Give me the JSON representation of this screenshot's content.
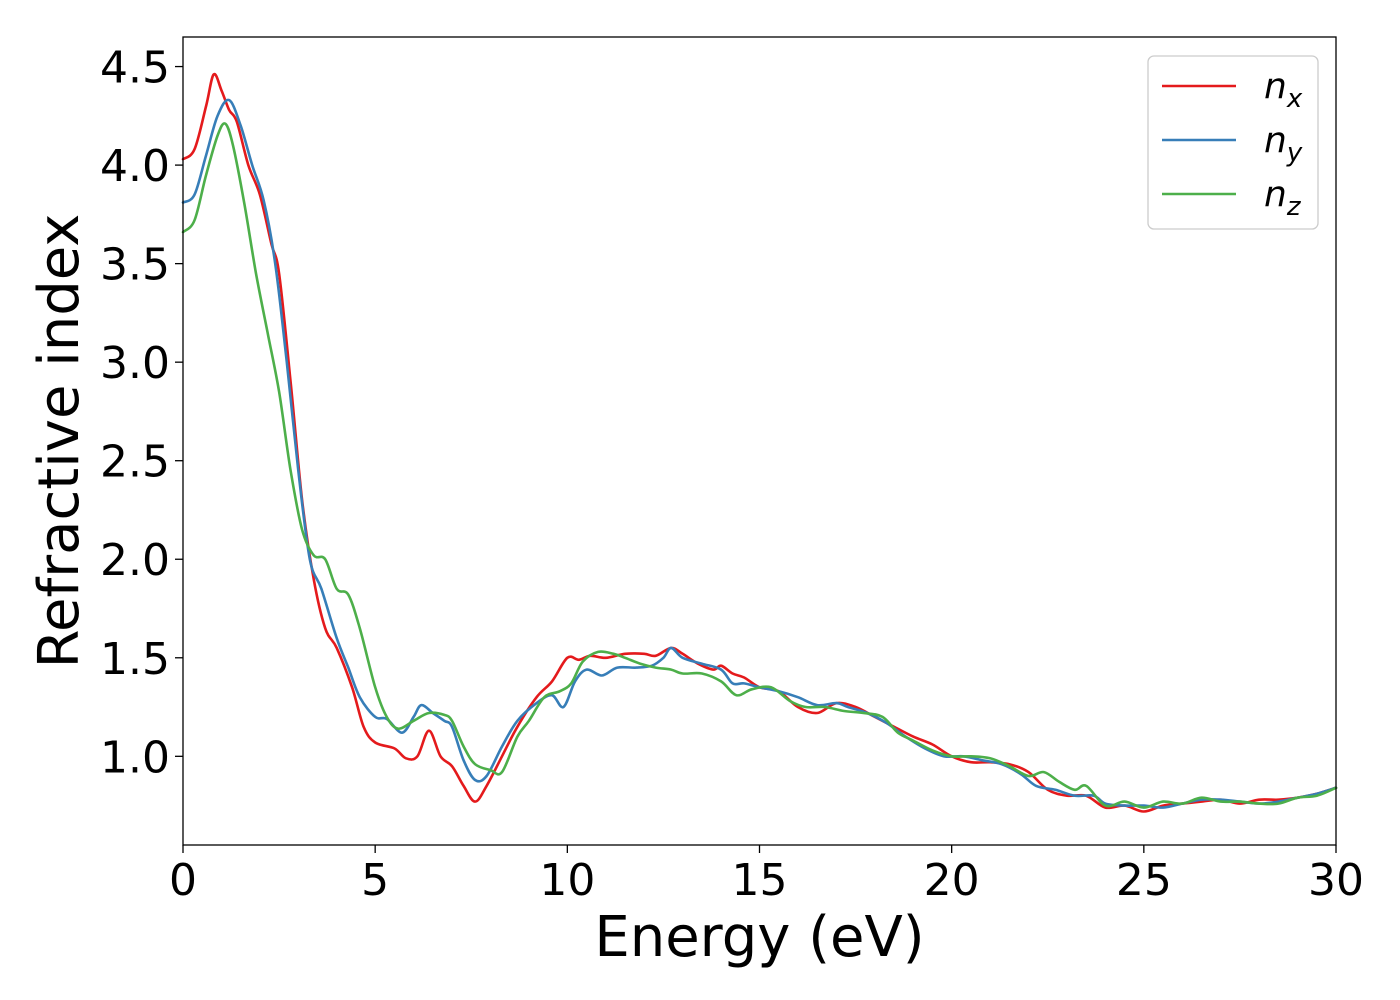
{
  "chart_data": {
    "type": "line",
    "xlabel": "Energy (eV)",
    "ylabel": "Refractive index",
    "xlim": [
      0,
      30
    ],
    "ylim": [
      0.55,
      4.65
    ],
    "xticks": [
      0,
      5,
      10,
      15,
      20,
      25,
      30
    ],
    "yticks": [
      1.0,
      1.5,
      2.0,
      2.5,
      3.0,
      3.5,
      4.0,
      4.5
    ],
    "xtick_labels": [
      "0",
      "5",
      "10",
      "15",
      "20",
      "25",
      "30"
    ],
    "ytick_labels": [
      "1.0",
      "1.5",
      "2.0",
      "2.5",
      "3.0",
      "3.5",
      "4.0",
      "4.5"
    ],
    "grid": false,
    "legend_position": "top-right",
    "series": [
      {
        "name": "n_x",
        "label_base": "n",
        "label_sub": "x",
        "color": "#e41a1c",
        "points": [
          [
            0,
            4.03
          ],
          [
            0.3,
            4.08
          ],
          [
            0.6,
            4.3
          ],
          [
            0.8,
            4.46
          ],
          [
            1.0,
            4.38
          ],
          [
            1.2,
            4.28
          ],
          [
            1.4,
            4.22
          ],
          [
            1.7,
            4.0
          ],
          [
            2.0,
            3.85
          ],
          [
            2.3,
            3.6
          ],
          [
            2.5,
            3.45
          ],
          [
            2.8,
            2.9
          ],
          [
            3.1,
            2.3
          ],
          [
            3.4,
            1.9
          ],
          [
            3.7,
            1.65
          ],
          [
            4.0,
            1.55
          ],
          [
            4.4,
            1.35
          ],
          [
            4.7,
            1.15
          ],
          [
            5.0,
            1.07
          ],
          [
            5.5,
            1.04
          ],
          [
            5.8,
            0.99
          ],
          [
            6.1,
            1.0
          ],
          [
            6.4,
            1.13
          ],
          [
            6.7,
            1.0
          ],
          [
            7.0,
            0.95
          ],
          [
            7.3,
            0.85
          ],
          [
            7.6,
            0.77
          ],
          [
            7.9,
            0.85
          ],
          [
            8.3,
            1.0
          ],
          [
            8.7,
            1.15
          ],
          [
            9.2,
            1.3
          ],
          [
            9.6,
            1.38
          ],
          [
            10.0,
            1.5
          ],
          [
            10.3,
            1.49
          ],
          [
            10.6,
            1.51
          ],
          [
            11.0,
            1.5
          ],
          [
            11.5,
            1.52
          ],
          [
            12.0,
            1.52
          ],
          [
            12.3,
            1.51
          ],
          [
            12.7,
            1.55
          ],
          [
            13.0,
            1.52
          ],
          [
            13.4,
            1.47
          ],
          [
            13.8,
            1.44
          ],
          [
            14.0,
            1.46
          ],
          [
            14.3,
            1.42
          ],
          [
            14.6,
            1.4
          ],
          [
            15.0,
            1.35
          ],
          [
            15.5,
            1.33
          ],
          [
            16.0,
            1.25
          ],
          [
            16.5,
            1.22
          ],
          [
            17.0,
            1.27
          ],
          [
            17.5,
            1.25
          ],
          [
            18.0,
            1.2
          ],
          [
            18.5,
            1.15
          ],
          [
            19.0,
            1.1
          ],
          [
            19.5,
            1.06
          ],
          [
            20.0,
            1.0
          ],
          [
            20.5,
            0.97
          ],
          [
            21.0,
            0.97
          ],
          [
            21.5,
            0.96
          ],
          [
            22.0,
            0.92
          ],
          [
            22.5,
            0.83
          ],
          [
            23.0,
            0.8
          ],
          [
            23.5,
            0.8
          ],
          [
            24.0,
            0.74
          ],
          [
            24.5,
            0.75
          ],
          [
            25.0,
            0.72
          ],
          [
            25.5,
            0.75
          ],
          [
            26.0,
            0.76
          ],
          [
            26.5,
            0.77
          ],
          [
            27.0,
            0.78
          ],
          [
            27.5,
            0.76
          ],
          [
            28.0,
            0.78
          ],
          [
            28.5,
            0.78
          ],
          [
            29.0,
            0.79
          ],
          [
            29.5,
            0.81
          ],
          [
            30.0,
            0.84
          ]
        ]
      },
      {
        "name": "n_y",
        "label_base": "n",
        "label_sub": "y",
        "color": "#377eb8",
        "points": [
          [
            0,
            3.81
          ],
          [
            0.3,
            3.85
          ],
          [
            0.6,
            4.05
          ],
          [
            0.9,
            4.25
          ],
          [
            1.2,
            4.33
          ],
          [
            1.5,
            4.2
          ],
          [
            1.8,
            4.0
          ],
          [
            2.1,
            3.82
          ],
          [
            2.4,
            3.5
          ],
          [
            2.7,
            3.0
          ],
          [
            3.0,
            2.45
          ],
          [
            3.3,
            2.0
          ],
          [
            3.6,
            1.85
          ],
          [
            4.0,
            1.6
          ],
          [
            4.3,
            1.45
          ],
          [
            4.6,
            1.3
          ],
          [
            5.0,
            1.2
          ],
          [
            5.3,
            1.19
          ],
          [
            5.7,
            1.12
          ],
          [
            6.0,
            1.2
          ],
          [
            6.2,
            1.26
          ],
          [
            6.5,
            1.22
          ],
          [
            6.8,
            1.18
          ],
          [
            7.0,
            1.15
          ],
          [
            7.3,
            0.98
          ],
          [
            7.6,
            0.88
          ],
          [
            7.9,
            0.9
          ],
          [
            8.3,
            1.05
          ],
          [
            8.7,
            1.18
          ],
          [
            9.2,
            1.27
          ],
          [
            9.6,
            1.31
          ],
          [
            9.9,
            1.25
          ],
          [
            10.2,
            1.38
          ],
          [
            10.5,
            1.44
          ],
          [
            10.9,
            1.41
          ],
          [
            11.3,
            1.45
          ],
          [
            11.8,
            1.45
          ],
          [
            12.2,
            1.46
          ],
          [
            12.5,
            1.5
          ],
          [
            12.7,
            1.55
          ],
          [
            13.0,
            1.5
          ],
          [
            13.5,
            1.47
          ],
          [
            14.0,
            1.44
          ],
          [
            14.3,
            1.37
          ],
          [
            14.6,
            1.37
          ],
          [
            15.0,
            1.35
          ],
          [
            15.5,
            1.33
          ],
          [
            16.0,
            1.3
          ],
          [
            16.5,
            1.26
          ],
          [
            17.0,
            1.27
          ],
          [
            17.3,
            1.25
          ],
          [
            17.8,
            1.22
          ],
          [
            18.3,
            1.17
          ],
          [
            18.8,
            1.1
          ],
          [
            19.3,
            1.04
          ],
          [
            19.8,
            1.0
          ],
          [
            20.3,
            1.0
          ],
          [
            20.8,
            0.98
          ],
          [
            21.3,
            0.96
          ],
          [
            21.8,
            0.91
          ],
          [
            22.2,
            0.85
          ],
          [
            22.7,
            0.83
          ],
          [
            23.2,
            0.8
          ],
          [
            23.7,
            0.8
          ],
          [
            24.0,
            0.76
          ],
          [
            24.5,
            0.75
          ],
          [
            25.0,
            0.75
          ],
          [
            25.5,
            0.74
          ],
          [
            26.0,
            0.76
          ],
          [
            26.5,
            0.78
          ],
          [
            27.0,
            0.78
          ],
          [
            27.5,
            0.77
          ],
          [
            28.0,
            0.76
          ],
          [
            28.5,
            0.77
          ],
          [
            29.0,
            0.79
          ],
          [
            29.5,
            0.81
          ],
          [
            30.0,
            0.84
          ]
        ]
      },
      {
        "name": "n_z",
        "label_base": "n",
        "label_sub": "z",
        "color": "#4daf4a",
        "points": [
          [
            0,
            3.66
          ],
          [
            0.3,
            3.72
          ],
          [
            0.6,
            3.95
          ],
          [
            0.9,
            4.15
          ],
          [
            1.1,
            4.21
          ],
          [
            1.3,
            4.1
          ],
          [
            1.6,
            3.8
          ],
          [
            1.9,
            3.45
          ],
          [
            2.2,
            3.15
          ],
          [
            2.5,
            2.85
          ],
          [
            2.8,
            2.45
          ],
          [
            3.1,
            2.15
          ],
          [
            3.4,
            2.02
          ],
          [
            3.7,
            2.0
          ],
          [
            4.0,
            1.85
          ],
          [
            4.3,
            1.82
          ],
          [
            4.6,
            1.65
          ],
          [
            5.0,
            1.35
          ],
          [
            5.3,
            1.2
          ],
          [
            5.6,
            1.14
          ],
          [
            6.0,
            1.18
          ],
          [
            6.4,
            1.22
          ],
          [
            6.8,
            1.21
          ],
          [
            7.0,
            1.18
          ],
          [
            7.3,
            1.05
          ],
          [
            7.6,
            0.96
          ],
          [
            8.0,
            0.93
          ],
          [
            8.3,
            0.92
          ],
          [
            8.7,
            1.1
          ],
          [
            9.0,
            1.18
          ],
          [
            9.4,
            1.3
          ],
          [
            9.8,
            1.33
          ],
          [
            10.1,
            1.37
          ],
          [
            10.4,
            1.48
          ],
          [
            10.8,
            1.53
          ],
          [
            11.2,
            1.52
          ],
          [
            11.5,
            1.5
          ],
          [
            11.9,
            1.47
          ],
          [
            12.3,
            1.45
          ],
          [
            12.7,
            1.44
          ],
          [
            13.0,
            1.42
          ],
          [
            13.5,
            1.42
          ],
          [
            14.0,
            1.38
          ],
          [
            14.4,
            1.31
          ],
          [
            14.8,
            1.34
          ],
          [
            15.3,
            1.35
          ],
          [
            15.8,
            1.28
          ],
          [
            16.2,
            1.25
          ],
          [
            16.7,
            1.25
          ],
          [
            17.2,
            1.23
          ],
          [
            17.7,
            1.22
          ],
          [
            18.2,
            1.2
          ],
          [
            18.6,
            1.12
          ],
          [
            19.0,
            1.08
          ],
          [
            19.5,
            1.03
          ],
          [
            20.0,
            1.0
          ],
          [
            20.5,
            1.0
          ],
          [
            21.0,
            0.99
          ],
          [
            21.5,
            0.95
          ],
          [
            22.0,
            0.9
          ],
          [
            22.4,
            0.92
          ],
          [
            22.8,
            0.87
          ],
          [
            23.2,
            0.83
          ],
          [
            23.5,
            0.85
          ],
          [
            24.0,
            0.75
          ],
          [
            24.5,
            0.77
          ],
          [
            25.0,
            0.74
          ],
          [
            25.5,
            0.77
          ],
          [
            26.0,
            0.76
          ],
          [
            26.5,
            0.79
          ],
          [
            27.0,
            0.77
          ],
          [
            27.5,
            0.77
          ],
          [
            28.0,
            0.76
          ],
          [
            28.5,
            0.76
          ],
          [
            29.0,
            0.79
          ],
          [
            29.5,
            0.8
          ],
          [
            30.0,
            0.84
          ]
        ]
      }
    ]
  }
}
